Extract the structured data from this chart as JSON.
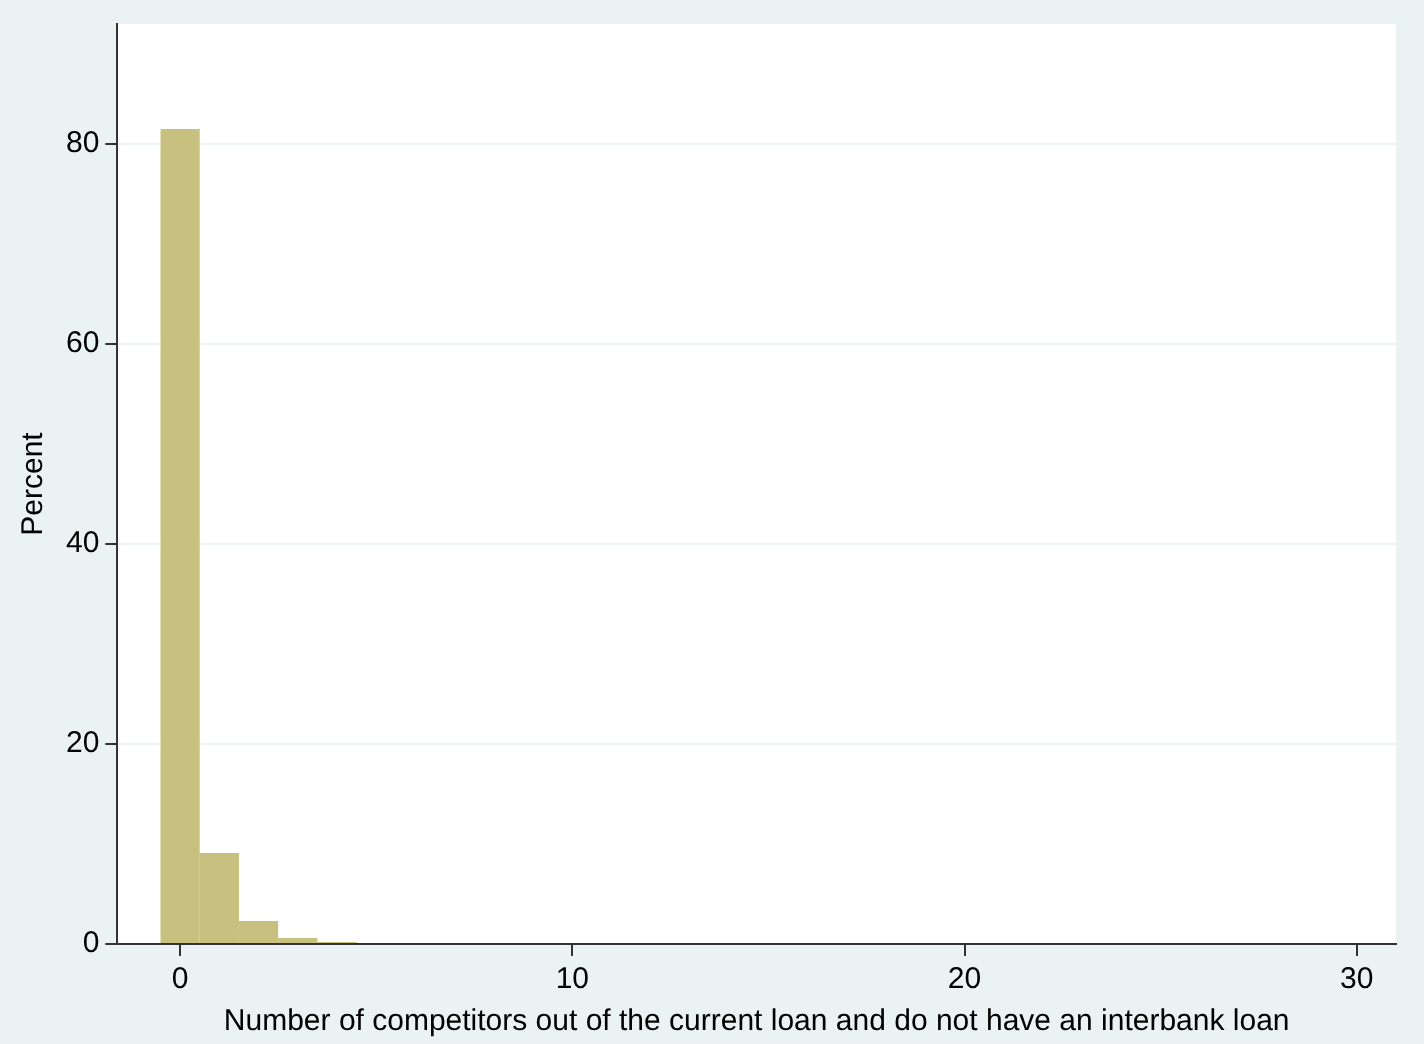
{
  "chart_data": {
    "type": "histogram",
    "xlabel": "Number of competitors out of the current loan and do not have an interbank loan",
    "ylabel": "Percent",
    "bins": [
      -0.5,
      0.5,
      1.5,
      2.5,
      3.5,
      4.5,
      5.5,
      6.5,
      7.5,
      8.5,
      9.5,
      10.5,
      11.5,
      12.5,
      13.5,
      14.5,
      15.5,
      16.5,
      17.5,
      18.5,
      19.5,
      20.5,
      21.5,
      22.5,
      23.5,
      24.5,
      25.5,
      26.5,
      27.5,
      28.5,
      29.5,
      30.5
    ],
    "values": [
      81.5,
      9.1,
      2.3,
      0.6,
      0.2,
      0.1,
      0.1,
      0.1,
      0.1,
      0.1,
      0.1,
      0.1,
      0.1,
      0.1,
      0.1,
      0.1,
      0.1,
      0.1,
      0.1,
      0.1,
      0.1,
      0.1,
      0,
      0.1,
      0.1,
      0.1,
      0.1,
      0,
      0,
      0,
      0.1
    ],
    "color": "#c8c07e",
    "xlim": [
      -1.6,
      31
    ],
    "xticks": [
      0,
      10,
      20,
      30
    ],
    "ylim": [
      0,
      92
    ],
    "yticks": [
      0,
      20,
      40,
      60,
      80
    ],
    "grid": "y"
  }
}
